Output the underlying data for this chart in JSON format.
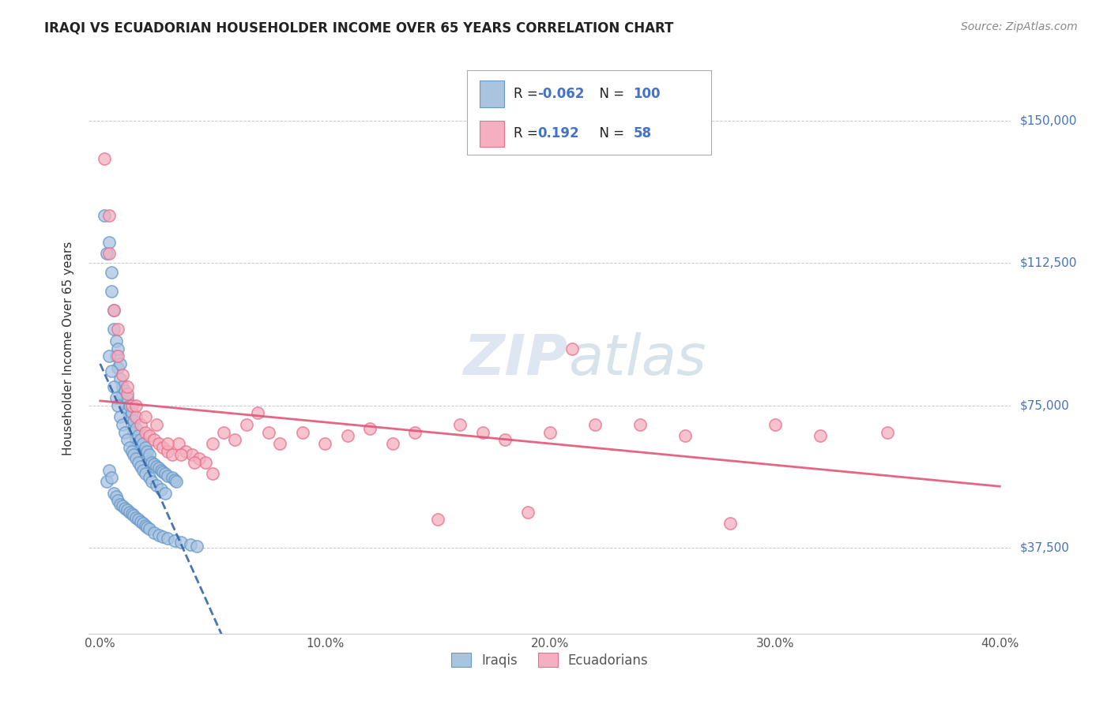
{
  "title": "IRAQI VS ECUADORIAN HOUSEHOLDER INCOME OVER 65 YEARS CORRELATION CHART",
  "source": "Source: ZipAtlas.com",
  "ylabel": "Householder Income Over 65 years",
  "xlabel_ticks": [
    "0.0%",
    "10.0%",
    "20.0%",
    "30.0%",
    "40.0%"
  ],
  "xlabel_vals": [
    0.0,
    0.1,
    0.2,
    0.3,
    0.4
  ],
  "ytick_labels": [
    "$37,500",
    "$75,000",
    "$112,500",
    "$150,000"
  ],
  "ytick_vals": [
    37500,
    75000,
    112500,
    150000
  ],
  "ylim": [
    15000,
    165000
  ],
  "xlim": [
    -0.005,
    0.405
  ],
  "legend_iraqis_R": "-0.062",
  "legend_iraqis_N": "100",
  "legend_ecuadorians_R": "0.192",
  "legend_ecuadorians_N": "58",
  "iraqis_color": "#aac4e0",
  "ecuadorians_color": "#f5afc0",
  "iraqis_edge_color": "#6699cc",
  "ecuadorians_edge_color": "#e8708a",
  "iraqis_line_color": "#3366aa",
  "ecuadorians_line_color": "#e05575",
  "watermark_color": "#c8d8e8",
  "background_color": "#ffffff",
  "iraqis_x": [
    0.002,
    0.003,
    0.004,
    0.005,
    0.005,
    0.006,
    0.006,
    0.007,
    0.007,
    0.008,
    0.008,
    0.009,
    0.009,
    0.01,
    0.01,
    0.011,
    0.011,
    0.012,
    0.012,
    0.013,
    0.013,
    0.014,
    0.014,
    0.015,
    0.015,
    0.016,
    0.016,
    0.017,
    0.017,
    0.018,
    0.018,
    0.019,
    0.019,
    0.02,
    0.02,
    0.021,
    0.021,
    0.022,
    0.022,
    0.023,
    0.024,
    0.025,
    0.026,
    0.027,
    0.028,
    0.029,
    0.03,
    0.032,
    0.033,
    0.034,
    0.004,
    0.005,
    0.006,
    0.007,
    0.008,
    0.009,
    0.01,
    0.011,
    0.012,
    0.013,
    0.014,
    0.015,
    0.016,
    0.017,
    0.018,
    0.019,
    0.02,
    0.022,
    0.023,
    0.025,
    0.027,
    0.029,
    0.003,
    0.004,
    0.005,
    0.006,
    0.007,
    0.008,
    0.009,
    0.01,
    0.011,
    0.012,
    0.013,
    0.014,
    0.015,
    0.016,
    0.017,
    0.018,
    0.019,
    0.02,
    0.021,
    0.022,
    0.024,
    0.026,
    0.028,
    0.03,
    0.033,
    0.036,
    0.04,
    0.043
  ],
  "iraqis_y": [
    125000,
    115000,
    118000,
    105000,
    110000,
    95000,
    100000,
    92000,
    88000,
    85000,
    90000,
    82000,
    86000,
    80000,
    78000,
    76000,
    79000,
    74000,
    77000,
    72000,
    75000,
    70000,
    73000,
    68000,
    71000,
    66000,
    69000,
    65000,
    67000,
    64000,
    66000,
    63000,
    65000,
    62000,
    64000,
    61000,
    63000,
    60500,
    62000,
    60000,
    59500,
    59000,
    58500,
    58000,
    57500,
    57000,
    56500,
    56000,
    55500,
    55000,
    88000,
    84000,
    80000,
    77000,
    75000,
    72000,
    70000,
    68000,
    66000,
    64000,
    63000,
    62000,
    61000,
    60000,
    59000,
    58000,
    57000,
    56000,
    55000,
    54000,
    53000,
    52000,
    55000,
    58000,
    56000,
    52000,
    51000,
    50000,
    49000,
    48500,
    48000,
    47500,
    47000,
    46500,
    46000,
    45500,
    45000,
    44500,
    44000,
    43500,
    43000,
    42500,
    41500,
    41000,
    40500,
    40000,
    39500,
    39000,
    38500,
    38000
  ],
  "ecuadorians_x": [
    0.002,
    0.004,
    0.006,
    0.008,
    0.01,
    0.012,
    0.014,
    0.016,
    0.018,
    0.02,
    0.022,
    0.024,
    0.026,
    0.028,
    0.03,
    0.032,
    0.035,
    0.038,
    0.041,
    0.044,
    0.047,
    0.05,
    0.055,
    0.06,
    0.065,
    0.07,
    0.075,
    0.08,
    0.09,
    0.1,
    0.11,
    0.12,
    0.13,
    0.14,
    0.15,
    0.16,
    0.17,
    0.18,
    0.19,
    0.2,
    0.21,
    0.22,
    0.24,
    0.26,
    0.28,
    0.3,
    0.32,
    0.35,
    0.004,
    0.008,
    0.012,
    0.016,
    0.02,
    0.025,
    0.03,
    0.036,
    0.042,
    0.05
  ],
  "ecuadorians_y": [
    140000,
    115000,
    100000,
    88000,
    83000,
    78000,
    75000,
    72000,
    70000,
    68000,
    67000,
    66000,
    65000,
    64000,
    63000,
    62000,
    65000,
    63000,
    62000,
    61000,
    60000,
    65000,
    68000,
    66000,
    70000,
    73000,
    68000,
    65000,
    68000,
    65000,
    67000,
    69000,
    65000,
    68000,
    45000,
    70000,
    68000,
    66000,
    47000,
    68000,
    90000,
    70000,
    70000,
    67000,
    44000,
    70000,
    67000,
    68000,
    125000,
    95000,
    80000,
    75000,
    72000,
    70000,
    65000,
    62000,
    60000,
    57000
  ]
}
